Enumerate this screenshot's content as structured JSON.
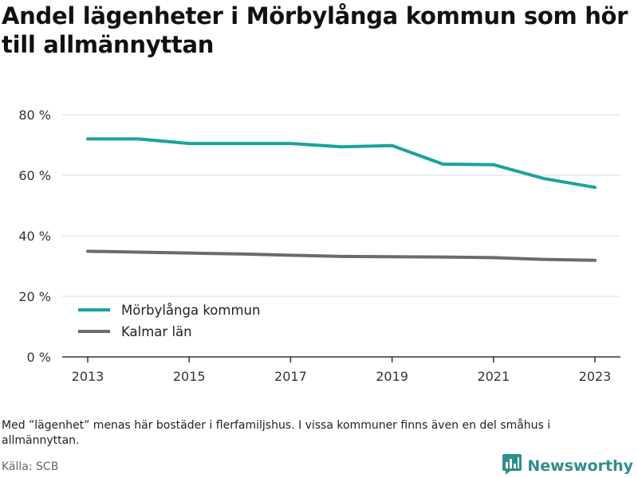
{
  "title": "Andel lägenheter i Mörbylånga kommun som hör till allmännyttan",
  "footnote": "Med ”lägenhet” menas här bostäder i flerfamiljshus. I vissa kommuner finns även en del småhus i allmännyttan.",
  "source": "Källa: SCB",
  "brand": {
    "name": "Newsworthy",
    "icon": "newsworthy-logo-icon"
  },
  "colors": {
    "series1": "#1aa39b",
    "series2": "#6b6b6b",
    "grid": "#dddddd",
    "axis": "#333333"
  },
  "chart_data": {
    "type": "line",
    "x": [
      2013,
      2014,
      2015,
      2016,
      2017,
      2018,
      2019,
      2020,
      2021,
      2022,
      2023
    ],
    "series": [
      {
        "name": "Mörbylånga kommun",
        "values": [
          72,
          72,
          70.5,
          70.5,
          70.5,
          69.4,
          69.8,
          63.7,
          63.5,
          58.9,
          56
        ]
      },
      {
        "name": "Kalmar län",
        "values": [
          34.9,
          34.6,
          34.3,
          34,
          33.6,
          33.2,
          33.1,
          33,
          32.8,
          32.2,
          31.9
        ]
      }
    ],
    "x_ticks": [
      "2013",
      "2015",
      "2017",
      "2019",
      "2021",
      "2023"
    ],
    "y_ticks": [
      "0 %",
      "20 %",
      "40 %",
      "60 %",
      "80 %"
    ],
    "y_tick_values": [
      0,
      20,
      40,
      60,
      80
    ],
    "ylim": [
      0,
      80
    ],
    "xlim": [
      2013,
      2023
    ],
    "grid": true,
    "legend_position": "bottom-left",
    "xlabel": "",
    "ylabel": ""
  }
}
